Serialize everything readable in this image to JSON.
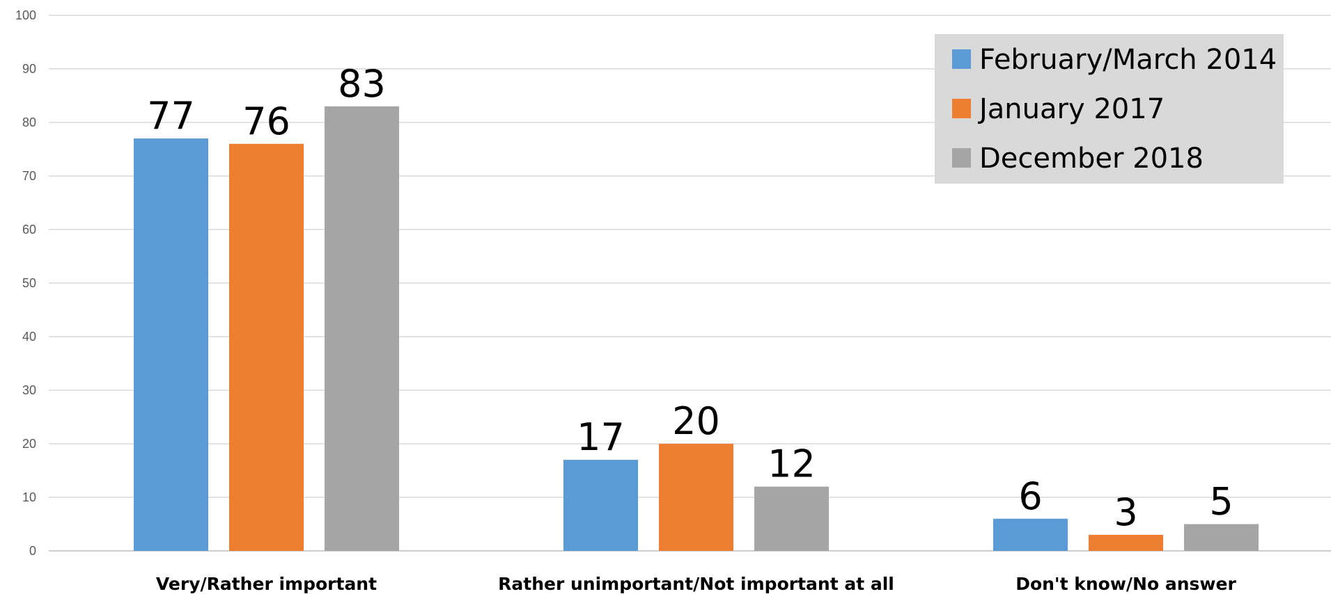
{
  "chart_data": {
    "type": "bar",
    "categories": [
      "Very/Rather important",
      "Rather unimportant/Not important at all",
      "Don't know/No answer"
    ],
    "series": [
      {
        "name": "February/March 2014",
        "color": "#5B9BD5",
        "values": [
          77,
          17,
          6
        ]
      },
      {
        "name": "January 2017",
        "color": "#ED7D31",
        "values": [
          76,
          20,
          3
        ]
      },
      {
        "name": "December 2018",
        "color": "#A5A5A5",
        "values": [
          83,
          12,
          5
        ]
      }
    ],
    "ylim": [
      0,
      100
    ],
    "yticks": [
      0,
      10,
      20,
      30,
      40,
      50,
      60,
      70,
      80,
      90,
      100
    ],
    "grid": true,
    "legend_position": "top-right",
    "title": "",
    "xlabel": "",
    "ylabel": ""
  }
}
